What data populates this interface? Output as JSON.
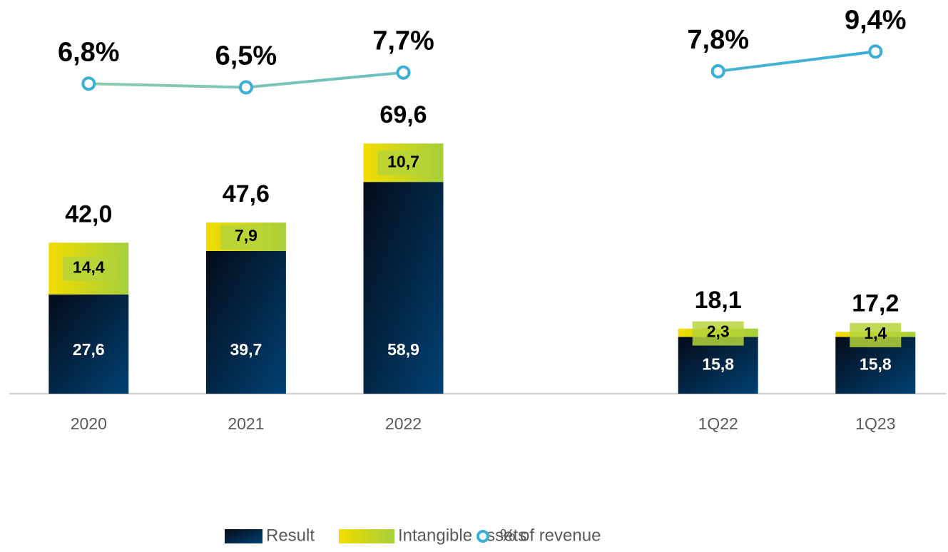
{
  "chart_data": {
    "type": "bar",
    "categories": [
      "2020",
      "2021",
      "2022",
      null,
      "1Q22",
      "1Q23"
    ],
    "series": [
      {
        "name": "Result",
        "color": "#004173",
        "values": [
          27.6,
          39.7,
          58.9,
          null,
          15.8,
          15.8
        ],
        "value_labels": [
          "27,6",
          "39,7",
          "58,9",
          null,
          "15,8",
          "15,8"
        ]
      },
      {
        "name": "Intangible assets",
        "color": "#f2dc00",
        "values": [
          14.4,
          7.9,
          10.7,
          null,
          2.3,
          1.4
        ],
        "value_labels": [
          "14,4",
          "7,9",
          "10,7",
          null,
          "2,3",
          "1,4"
        ]
      },
      {
        "name": "% of revenue",
        "type": "line",
        "axis": "y2",
        "color": "#3aaed6",
        "values": [
          6.8,
          6.5,
          7.7,
          null,
          7.8,
          9.4
        ],
        "value_labels": [
          "6,8%",
          "6,5%",
          "7,7%",
          null,
          "7,8%",
          "9,4%"
        ]
      }
    ],
    "totals": {
      "values": [
        42.0,
        47.6,
        69.6,
        null,
        18.1,
        17.2
      ],
      "value_labels": [
        "42,0",
        "47,6",
        "69,6",
        null,
        "18,1",
        "17,2"
      ]
    },
    "ylim": [
      0,
      100
    ],
    "y2lim": [
      -18.3,
      10.8
    ],
    "stacked": true,
    "legend": "bottom"
  }
}
